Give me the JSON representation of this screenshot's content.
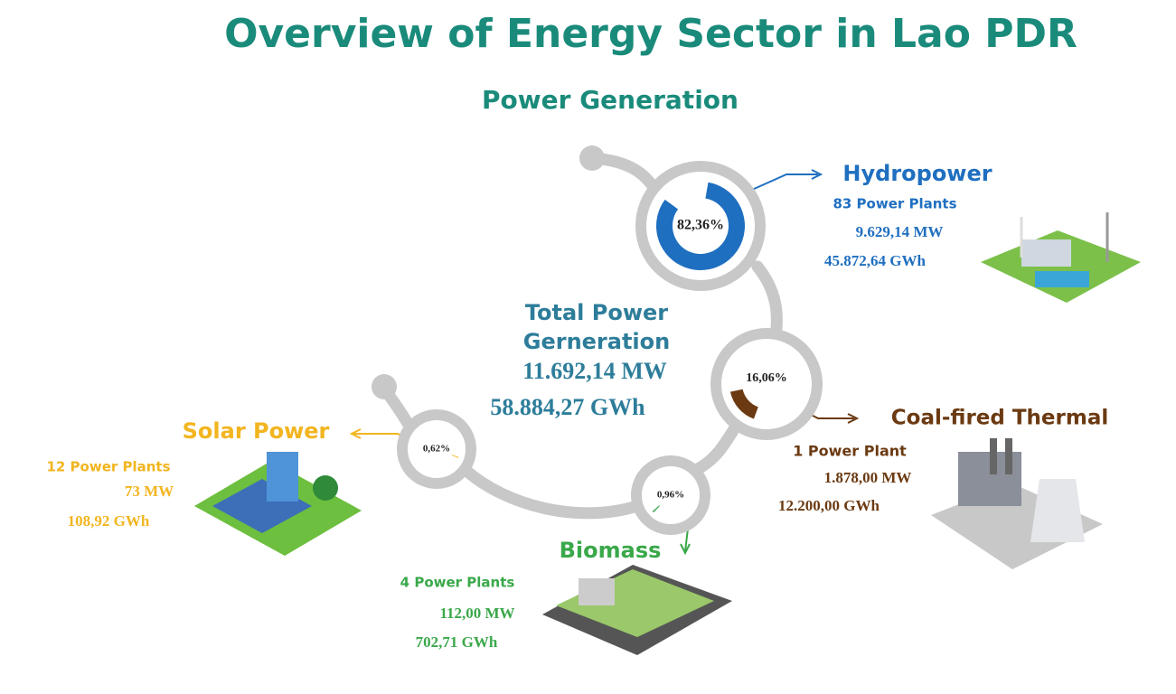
{
  "title": "Overview of Energy Sector in Lao PDR",
  "subtitle": "Power Generation",
  "total": {
    "label_line1": "Total Power",
    "label_line2": "Gerneration",
    "capacity": "11.692,14 MW",
    "energy": "58.884,27 GWh"
  },
  "sources": [
    {
      "name": "Hydropower",
      "share": 82.36,
      "share_label": "82,36%",
      "plants": "83 Power Plants",
      "capacity": "9.629,14 MW",
      "energy": "45.872,64 GWh",
      "color": "#1f6fc0"
    },
    {
      "name": "Coal-fired Thermal",
      "share": 16.06,
      "share_label": "16,06%",
      "plants": "1 Power Plant",
      "capacity": "1.878,00 MW",
      "energy": "12.200,00 GWh",
      "color": "#6b3a12"
    },
    {
      "name": "Biomass",
      "share": 0.96,
      "share_label": "0,96%",
      "plants": "4 Power Plants",
      "capacity": "112,00 MW",
      "energy": "702,71 GWh",
      "color": "#3aa84a"
    },
    {
      "name": "Solar Power",
      "share": 0.62,
      "share_label": "0,62%",
      "plants": "12 Power Plants",
      "capacity": "73 MW",
      "energy": "108,92 GWh",
      "color": "#f2b51f"
    }
  ]
}
